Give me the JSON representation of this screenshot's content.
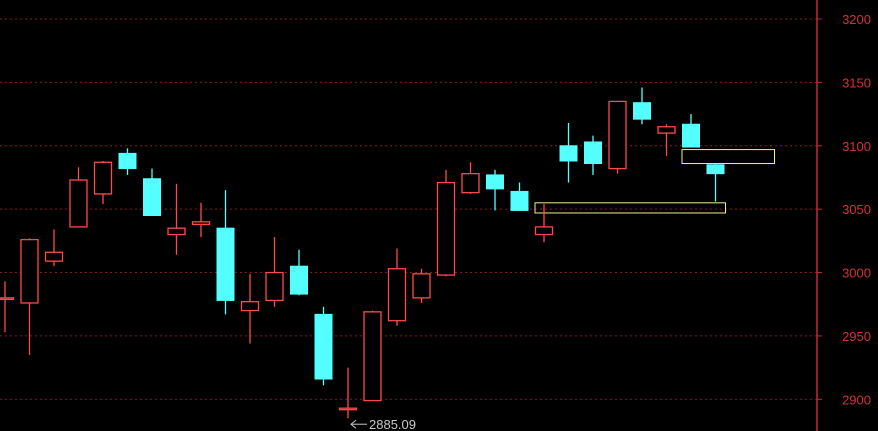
{
  "colors": {
    "background": "#000000",
    "up": "#ff4a4a",
    "down": "#54ffff",
    "grid": "#8a1a1a",
    "axis": "#c42a2a",
    "tick_text": "#d03434",
    "annotation": "#c8c8c8",
    "box": "#f0f090"
  },
  "chart_data": {
    "type": "candlestick",
    "title": "",
    "xlabel": "",
    "ylabel": "",
    "ylim": [
      2875,
      3215
    ],
    "yticks": [
      2900,
      2950,
      3000,
      3050,
      3100,
      3150,
      3200
    ],
    "ytick_labels": [
      "2900",
      "2950",
      "3000",
      "3050",
      "3100",
      "3150",
      "3200"
    ],
    "grid": true,
    "candles": [
      {
        "open": 2980,
        "high": 2993,
        "low": 2953,
        "close": 2980
      },
      {
        "open": 2976,
        "high": 3027,
        "low": 2935,
        "close": 3026
      },
      {
        "open": 3009,
        "high": 3034,
        "low": 3005,
        "close": 3016
      },
      {
        "open": 3036,
        "high": 3083,
        "low": 3036,
        "close": 3073
      },
      {
        "open": 3062,
        "high": 3088,
        "low": 3054,
        "close": 3087
      },
      {
        "open": 3094,
        "high": 3098,
        "low": 3077,
        "close": 3082
      },
      {
        "open": 3074,
        "high": 3082,
        "low": 3045,
        "close": 3045
      },
      {
        "open": 3030,
        "high": 3070,
        "low": 3014,
        "close": 3035
      },
      {
        "open": 3038,
        "high": 3055,
        "low": 3028,
        "close": 3040
      },
      {
        "open": 3035,
        "high": 3065,
        "low": 2967,
        "close": 2978
      },
      {
        "open": 2970,
        "high": 2999,
        "low": 2944,
        "close": 2977
      },
      {
        "open": 2978,
        "high": 3028,
        "low": 2973,
        "close": 3000
      },
      {
        "open": 3005,
        "high": 3018,
        "low": 2982,
        "close": 2983
      },
      {
        "open": 2967,
        "high": 2973,
        "low": 2911,
        "close": 2916
      },
      {
        "open": 2892,
        "high": 2925,
        "low": 2885.09,
        "close": 2893
      },
      {
        "open": 2899,
        "high": 2970,
        "low": 2899,
        "close": 2969
      },
      {
        "open": 2962,
        "high": 3019,
        "low": 2958,
        "close": 3003
      },
      {
        "open": 2980,
        "high": 3003,
        "low": 2976,
        "close": 2999
      },
      {
        "open": 2998,
        "high": 3081,
        "low": 2997,
        "close": 3071
      },
      {
        "open": 3063,
        "high": 3087,
        "low": 3062,
        "close": 3078
      },
      {
        "open": 3077,
        "high": 3081,
        "low": 3049,
        "close": 3066
      },
      {
        "open": 3064,
        "high": 3071,
        "low": 3049,
        "close": 3049
      },
      {
        "open": 3030,
        "high": 3054,
        "low": 3024,
        "close": 3036
      },
      {
        "open": 3100,
        "high": 3118,
        "low": 3071,
        "close": 3088
      },
      {
        "open": 3103,
        "high": 3108,
        "low": 3077,
        "close": 3086
      },
      {
        "open": 3082,
        "high": 3135,
        "low": 3078,
        "close": 3135
      },
      {
        "open": 3134,
        "high": 3146,
        "low": 3117,
        "close": 3121
      },
      {
        "open": 3110,
        "high": 3117,
        "low": 3092,
        "close": 3115
      },
      {
        "open": 3117,
        "high": 3125,
        "low": 3099,
        "close": 3099
      },
      {
        "open": 3085,
        "high": 3086,
        "low": 3056,
        "close": 3078
      }
    ],
    "annotations": [
      {
        "text": "2885.09",
        "candle_index": 14,
        "value": 2885.09
      }
    ],
    "ranges": [
      {
        "from_candle": 22,
        "to_candle": 30,
        "low": 3047,
        "high": 3055
      },
      {
        "from_candle": 28,
        "to_candle": 32,
        "low": 3086,
        "high": 3097
      }
    ]
  }
}
